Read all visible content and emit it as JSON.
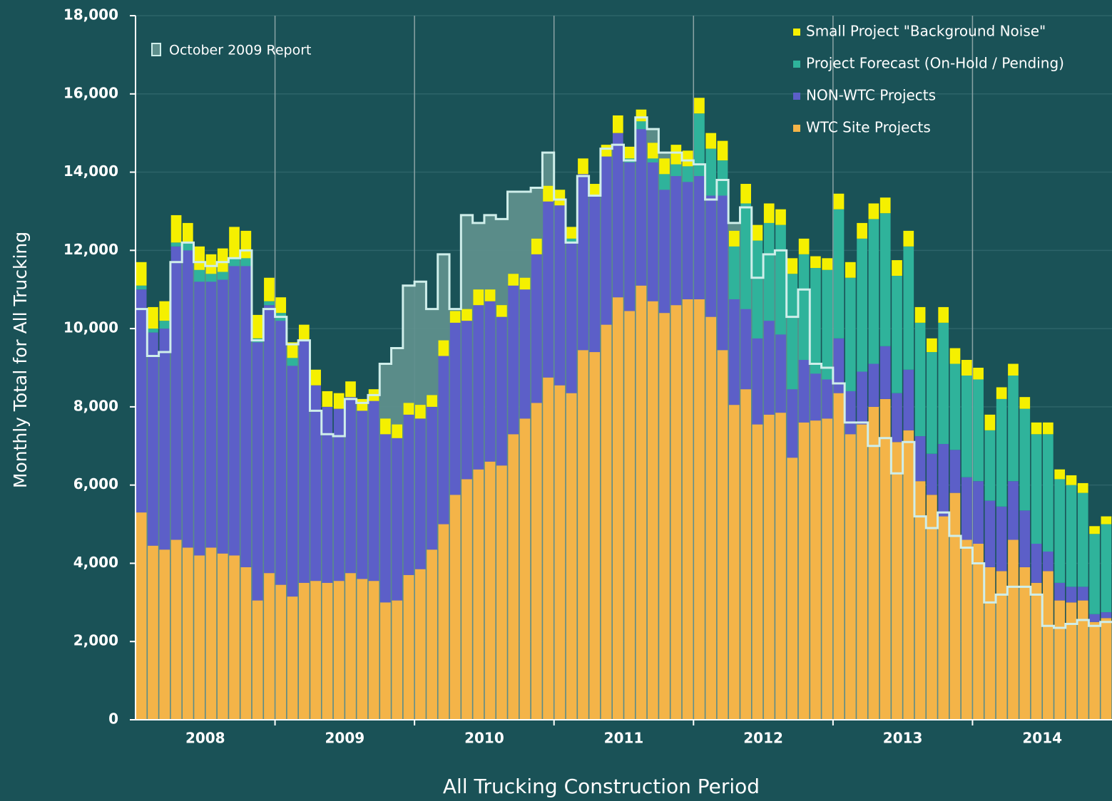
{
  "chart_data": {
    "type": "stacked-bar",
    "x_label": "All Trucking Construction Period",
    "y_label": "Monthly Total for All Trucking",
    "categories": [
      null,
      null,
      null,
      null,
      null,
      null,
      "2008",
      null,
      null,
      null,
      null,
      null,
      null,
      null,
      null,
      null,
      null,
      null,
      "2009",
      null,
      null,
      null,
      null,
      null,
      null,
      null,
      null,
      null,
      null,
      null,
      "2010",
      null,
      null,
      null,
      null,
      null,
      null,
      null,
      null,
      null,
      null,
      null,
      "2011",
      null,
      null,
      null,
      null,
      null,
      null,
      null,
      null,
      null,
      null,
      null,
      "2012",
      null,
      null,
      null,
      null,
      null,
      null,
      null,
      null,
      null,
      null,
      null,
      "2013",
      null,
      null,
      null,
      null,
      null,
      null,
      null,
      null,
      null,
      null,
      null,
      "2014",
      null,
      null,
      null,
      null,
      null
    ],
    "ylim": [
      0,
      18000
    ],
    "yticks": [
      0,
      {
        "value": 2000,
        "label": "2,000"
      },
      {
        "value": 4000,
        "label": "4,000"
      },
      {
        "value": 6000,
        "label": "6,000"
      },
      {
        "value": 8000,
        "label": "8,000"
      },
      {
        "value": 10000,
        "label": "10,000"
      },
      {
        "value": 12000,
        "label": "12,000"
      },
      {
        "value": 14000,
        "label": "14,000"
      },
      {
        "value": 16000,
        "label": "16,000"
      },
      {
        "value": 18000,
        "label": "18,000"
      }
    ],
    "grid": true,
    "legend": "top-right",
    "series": [
      {
        "name": "WTC Site Projects",
        "color": "#f4b448",
        "values": [
          5300,
          4450,
          4350,
          4600,
          4400,
          4200,
          4400,
          4250,
          4200,
          3900,
          3050,
          3750,
          3450,
          3150,
          3500,
          3550,
          3500,
          3550,
          3750,
          3600,
          3550,
          3000,
          3050,
          3700,
          3850,
          4350,
          5000,
          5750,
          6150,
          6400,
          6600,
          6500,
          7300,
          7700,
          8100,
          8750,
          8550,
          8350,
          9450,
          9400,
          10100,
          10800,
          10450,
          11100,
          10700,
          10400,
          10600,
          10750,
          10750,
          10300,
          9450,
          8050,
          8450,
          7550,
          7800,
          7850,
          6700,
          7600,
          7650,
          7700,
          8350,
          7300,
          7550,
          8000,
          8200,
          7100,
          7400,
          6100,
          5750,
          5200,
          5800,
          4600,
          4500,
          3900,
          3800,
          4600,
          3900,
          3500,
          3800,
          3050,
          3000,
          3050,
          2500,
          2600
        ]
      },
      {
        "name": "NON-WTC Projects",
        "color": "#5c5fc8",
        "values": [
          5700,
          5450,
          5650,
          7500,
          7600,
          7000,
          6800,
          7000,
          7400,
          7700,
          6600,
          6850,
          6750,
          5900,
          6200,
          5000,
          4500,
          4400,
          4500,
          4300,
          4600,
          4300,
          4150,
          4100,
          3850,
          3650,
          4300,
          4400,
          4050,
          4200,
          4100,
          3800,
          3800,
          3300,
          3800,
          4500,
          4600,
          3850,
          4500,
          4000,
          4300,
          4200,
          3800,
          4000,
          3550,
          3150,
          3300,
          3000,
          3150,
          3100,
          3950,
          2700,
          2050,
          2200,
          2400,
          2000,
          1750,
          1600,
          1200,
          1000,
          1400,
          1100,
          1350,
          1100,
          1350,
          1250,
          1550,
          1150,
          1050,
          1850,
          1100,
          1600,
          1600,
          1700,
          1650,
          1500,
          1450,
          1000,
          500,
          450,
          400,
          350,
          200,
          150
        ]
      },
      {
        "name": "Project Forecast (On-Hold / Pending)",
        "color": "#2fb39b",
        "values": [
          100,
          100,
          200,
          100,
          200,
          300,
          200,
          200,
          200,
          200,
          100,
          100,
          200,
          200,
          0,
          0,
          0,
          0,
          0,
          0,
          0,
          0,
          0,
          0,
          0,
          0,
          0,
          0,
          0,
          0,
          0,
          0,
          0,
          0,
          0,
          0,
          0,
          100,
          0,
          0,
          0,
          0,
          100,
          200,
          100,
          400,
          300,
          400,
          1600,
          1200,
          900,
          1350,
          2700,
          2500,
          2500,
          2800,
          2950,
          2700,
          2700,
          2800,
          3300,
          2900,
          3400,
          3700,
          3400,
          3000,
          3150,
          2900,
          2600,
          3100,
          2200,
          2600,
          2600,
          1800,
          2750,
          2700,
          2600,
          2800,
          3000,
          2650,
          2600,
          2400,
          2050,
          2250
        ]
      },
      {
        "name": "Small Project \"Background Noise\"",
        "color": "#f5f000",
        "values": [
          600,
          550,
          500,
          700,
          500,
          600,
          500,
          600,
          800,
          700,
          600,
          600,
          400,
          400,
          400,
          400,
          400,
          400,
          400,
          300,
          300,
          400,
          350,
          300,
          350,
          300,
          400,
          300,
          300,
          400,
          300,
          300,
          300,
          300,
          400,
          400,
          400,
          300,
          400,
          300,
          300,
          450,
          300,
          300,
          400,
          400,
          500,
          400,
          400,
          400,
          500,
          400,
          500,
          400,
          500,
          400,
          400,
          400,
          300,
          300,
          400,
          400,
          400,
          400,
          400,
          400,
          400,
          400,
          350,
          400,
          400,
          400,
          300,
          400,
          300,
          300,
          300,
          300,
          300,
          250,
          250,
          250,
          200,
          200
        ]
      }
    ],
    "reference": {
      "name": "October 2009 Report",
      "color": "#cfeeea",
      "fill": "#5e8f8c",
      "values": [
        10500,
        9300,
        9400,
        11700,
        12200,
        11700,
        11600,
        11700,
        11800,
        12000,
        9700,
        10500,
        10300,
        9600,
        9700,
        7900,
        7300,
        7250,
        8200,
        8100,
        8300,
        9100,
        9500,
        11100,
        11200,
        10500,
        11900,
        10500,
        12900,
        12700,
        12900,
        12800,
        13500,
        13500,
        13600,
        14500,
        13300,
        12200,
        13900,
        13400,
        14600,
        14700,
        14300,
        15400,
        15100,
        14500,
        14500,
        14300,
        14200,
        13300,
        13800,
        12700,
        13100,
        11300,
        11900,
        12000,
        10300,
        11000,
        9100,
        9000,
        8600,
        7600,
        7600,
        7000,
        7200,
        6300,
        7100,
        5200,
        4900,
        5300,
        4700,
        4400,
        4000,
        3000,
        3200,
        3400,
        3400,
        3200,
        2400,
        2350,
        2450,
        2550,
        2400,
        2500
      ]
    }
  }
}
